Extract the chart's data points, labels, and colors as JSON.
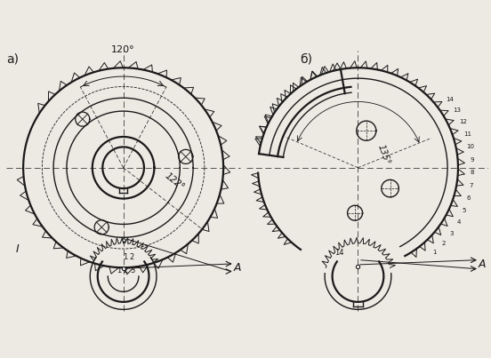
{
  "bg_color": "#ede9e3",
  "line_color": "#1a1a1a",
  "label_a": "а)",
  "label_b": "б)",
  "angle_120": "120°",
  "angle_122": "122°",
  "angle_135": "135°",
  "label_A": "A",
  "label_I": "I",
  "label_numbers": [
    "1",
    "2",
    "3",
    "4",
    "5",
    "6",
    "7",
    "8",
    "9",
    "10",
    "11",
    "12",
    "13",
    "14"
  ],
  "lw": 1.0,
  "lw_thick": 1.6
}
